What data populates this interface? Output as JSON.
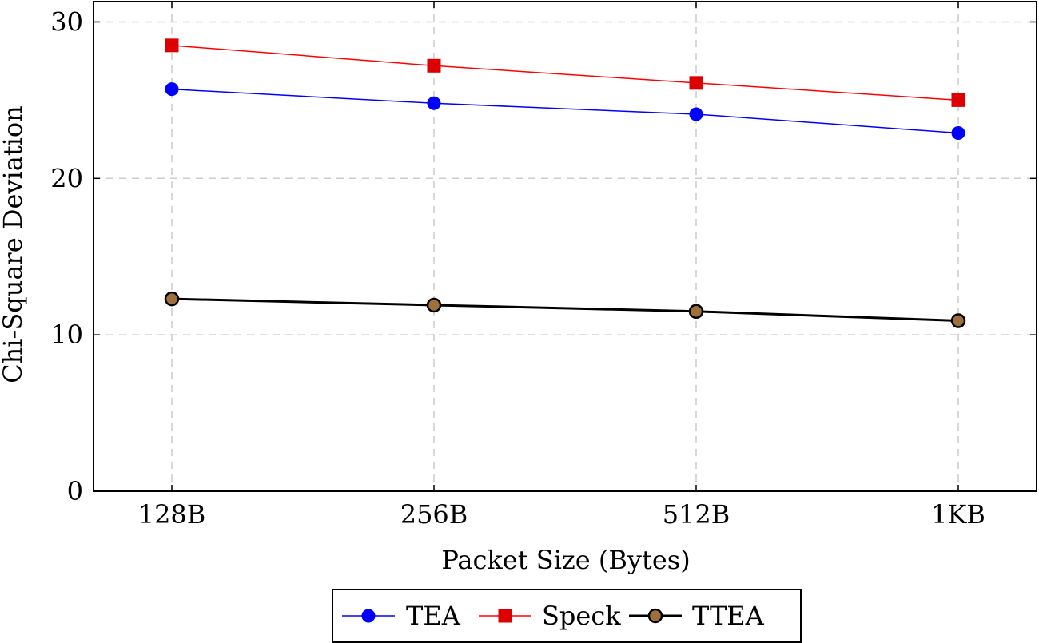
{
  "chart_data": {
    "type": "line",
    "title": "",
    "xlabel": "Packet Size (Bytes)",
    "ylabel": "Chi-Square Deviation",
    "categories": [
      "128B",
      "256B",
      "512B",
      "1KB"
    ],
    "ylim": [
      0,
      31.3
    ],
    "yticks": [
      0,
      10,
      20,
      30
    ],
    "grid": true,
    "legend_position": "bottom-center",
    "series": [
      {
        "name": "TEA",
        "values": [
          25.7,
          24.8,
          24.1,
          22.9
        ],
        "color": "#0000ff",
        "marker": "circle",
        "marker_color": "#0000ff"
      },
      {
        "name": "Speck",
        "values": [
          28.5,
          27.2,
          26.1,
          25.0
        ],
        "color": "#ff0000",
        "marker": "square",
        "marker_color": "#dd0000"
      },
      {
        "name": "TTEA",
        "values": [
          12.3,
          11.9,
          11.5,
          10.9
        ],
        "color": "#000000",
        "marker": "circle",
        "marker_color": "#a0703c"
      }
    ]
  }
}
